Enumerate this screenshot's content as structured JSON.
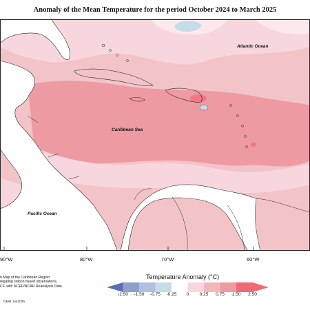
{
  "title": "Anomaly of the Mean Temperature for the period October 2024 to March 2025",
  "labels": {
    "atlantic": "Atlantic Ocean",
    "caribbean": "Caribbean Sea",
    "pacific": "Pacific Ocean"
  },
  "longitude_ticks": [
    "90°W",
    "80°W",
    "70°W",
    "60°W"
  ],
  "note_lines": [
    "n Map of the Caribbean Region",
    "regating station based observations,",
    "CF, with NCEP/NCAR Reanalysis Data."
  ],
  "copyright": "CIMH Jun2025",
  "legend": {
    "title": "Temperature Anomaly (°C)",
    "ticks": [
      "-2.50",
      "-1.50",
      "-0.75",
      "-0.25",
      "0",
      "0.25",
      "0.75",
      "1.50",
      "2.50"
    ],
    "colors": [
      "#5a6fb0",
      "#8da0cc",
      "#b3c0dd",
      "#c6dce6",
      "#ffffff",
      "#f7d7dd",
      "#f2b7bd",
      "#ee9aa3",
      "#f06a74"
    ]
  }
}
